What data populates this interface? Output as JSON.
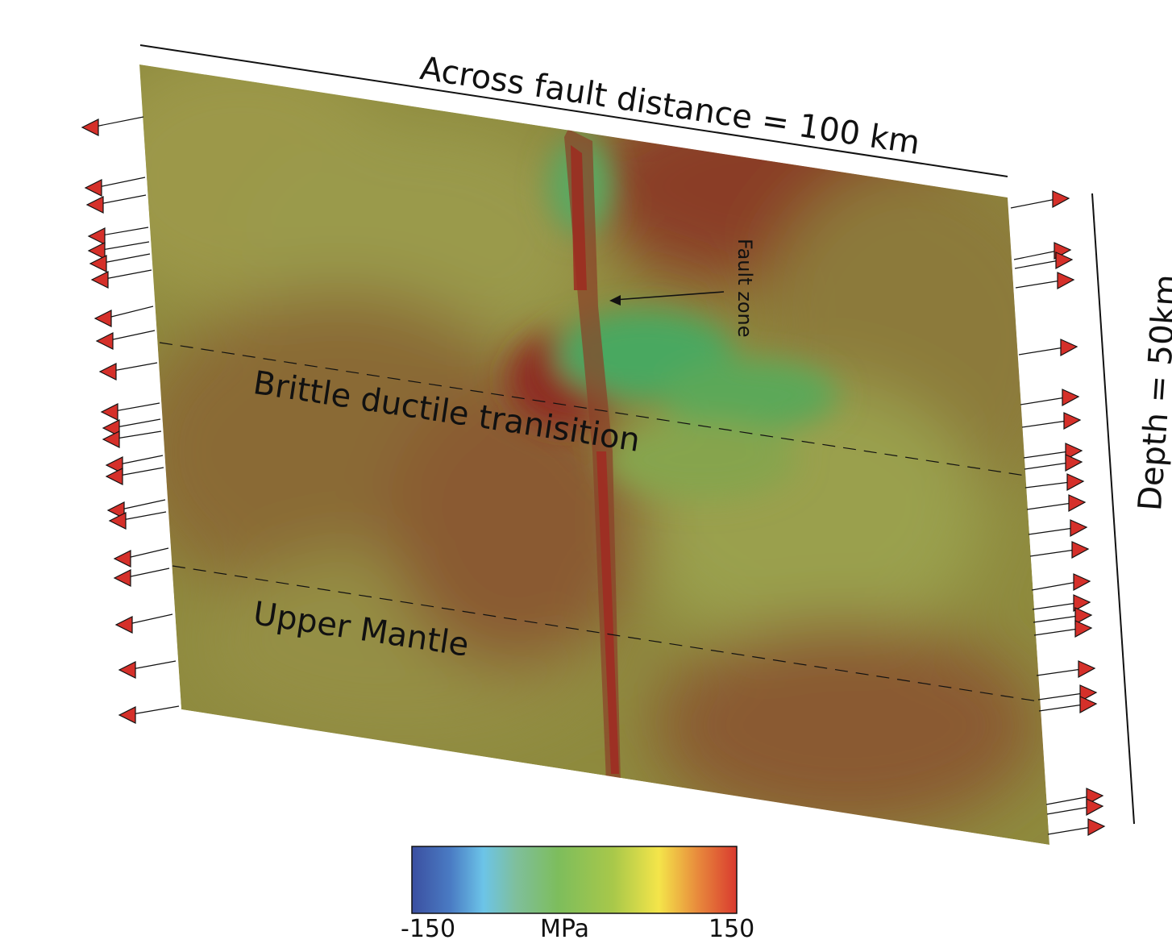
{
  "figure": {
    "width_label": "Across fault distance = 100 km",
    "depth_label": "Depth = 50km",
    "fault_label": "Fault zone",
    "layers": [
      "Brittle ductile tranisition",
      "Upper Mantle"
    ]
  },
  "colorbar": {
    "min_label": "-150",
    "unit_label": "MPa",
    "max_label": "150",
    "stops": [
      "#3b4fa0",
      "#4a7cc4",
      "#6cc4e8",
      "#7fbf9c",
      "#7dbd5c",
      "#a8c84a",
      "#f4e54a",
      "#e88a3c",
      "#d93a2f"
    ]
  },
  "colors": {
    "background_field": "#8e8a3e",
    "compressive": "#8b2a1e",
    "tensile": "#48a860",
    "arrow": "#d5302a"
  }
}
